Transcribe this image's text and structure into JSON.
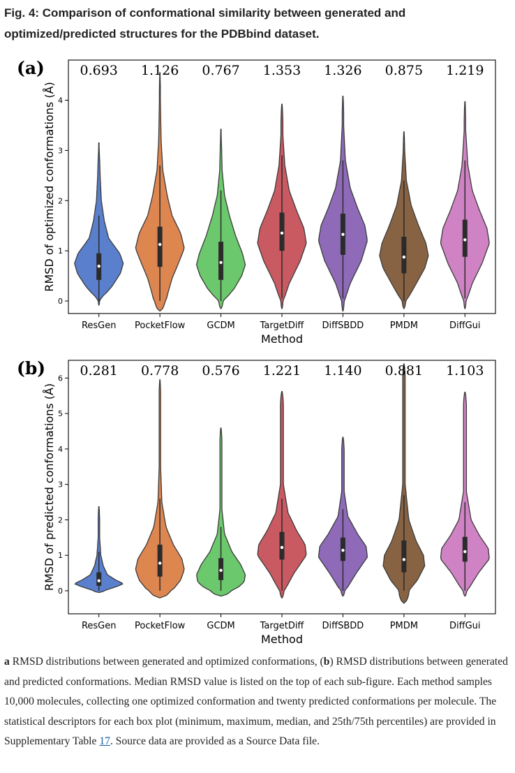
{
  "figure": {
    "title": "Fig. 4: Comparison of conformational similarity between generated and optimized/predicted structures for the PDBbind dataset.",
    "caption": {
      "label_a": "a",
      "text_1": " RMSD distributions between generated and optimized conformations, (",
      "label_b": "b",
      "text_2": ") RMSD distributions between generated and predicted conformations. Median RMSD value is listed on the top of each sub-figure. Each method samples 10,000 molecules, collecting one optimized conformation and twenty predicted conformations per molecule. The statistical descriptors for each box plot (minimum, maximum, median, and 25th/75th percentiles) are provided in Supplementary Table ",
      "table_link": "17",
      "text_3": ". Source data are provided as a Source Data file."
    }
  },
  "chart_data": [
    {
      "type": "violin",
      "panel_label": "(a)",
      "xlabel": "Method",
      "ylabel": "RMSD of optimized conformations (Å)",
      "ylim": [
        -0.25,
        4.8
      ],
      "yticks": [
        0,
        1,
        2,
        3,
        4
      ],
      "grid": false,
      "categories": [
        "ResGen",
        "PocketFlow",
        "GCDM",
        "TargetDiff",
        "DiffSBDD",
        "PMDM",
        "DiffGui"
      ],
      "median_labels": [
        "0.693",
        "1.126",
        "0.767",
        "1.353",
        "1.326",
        "0.875",
        "1.219"
      ],
      "medians": [
        0.693,
        1.126,
        0.767,
        1.353,
        1.326,
        0.875,
        1.219
      ],
      "q1": [
        0.42,
        0.68,
        0.42,
        1.0,
        0.92,
        0.55,
        0.88
      ],
      "q3": [
        0.95,
        1.48,
        1.18,
        1.76,
        1.74,
        1.28,
        1.62
      ],
      "whisker_low": [
        0.0,
        0.0,
        0.0,
        0.05,
        0.05,
        0.0,
        0.05
      ],
      "whisker_high": [
        1.7,
        2.7,
        2.2,
        2.9,
        2.8,
        2.4,
        2.8
      ],
      "min": [
        -0.08,
        -0.2,
        -0.15,
        -0.15,
        -0.2,
        -0.15,
        -0.15
      ],
      "max": [
        3.15,
        4.55,
        3.42,
        3.92,
        4.08,
        3.37,
        3.97
      ],
      "colors": [
        "#5a7fcd",
        "#de8650",
        "#6cc86c",
        "#c95a62",
        "#8e6ab8",
        "#886343",
        "#d083c4"
      ],
      "shape_profiles": [
        [
          [
            0.0,
            0.05
          ],
          [
            0.1,
            0.2
          ],
          [
            0.3,
            0.55
          ],
          [
            0.55,
            0.88
          ],
          [
            0.75,
            1.0
          ],
          [
            0.95,
            0.85
          ],
          [
            1.25,
            0.4
          ],
          [
            1.6,
            0.22
          ],
          [
            2.0,
            0.1
          ],
          [
            2.5,
            0.05
          ],
          [
            3.0,
            0.02
          ]
        ],
        [
          [
            0.0,
            0.25
          ],
          [
            0.2,
            0.35
          ],
          [
            0.45,
            0.5
          ],
          [
            0.8,
            0.8
          ],
          [
            1.05,
            1.0
          ],
          [
            1.35,
            0.85
          ],
          [
            1.7,
            0.5
          ],
          [
            2.1,
            0.3
          ],
          [
            2.6,
            0.12
          ],
          [
            3.2,
            0.05
          ],
          [
            4.0,
            0.02
          ]
        ],
        [
          [
            0.0,
            0.12
          ],
          [
            0.25,
            0.55
          ],
          [
            0.5,
            0.85
          ],
          [
            0.72,
            1.0
          ],
          [
            0.95,
            0.88
          ],
          [
            1.3,
            0.6
          ],
          [
            1.7,
            0.35
          ],
          [
            2.1,
            0.15
          ],
          [
            2.6,
            0.05
          ],
          [
            3.2,
            0.02
          ]
        ],
        [
          [
            0.0,
            0.06
          ],
          [
            0.35,
            0.3
          ],
          [
            0.8,
            0.75
          ],
          [
            1.15,
            1.0
          ],
          [
            1.45,
            0.9
          ],
          [
            1.8,
            0.6
          ],
          [
            2.2,
            0.3
          ],
          [
            2.7,
            0.12
          ],
          [
            3.3,
            0.04
          ]
        ],
        [
          [
            0.0,
            0.06
          ],
          [
            0.35,
            0.3
          ],
          [
            0.8,
            0.75
          ],
          [
            1.2,
            1.0
          ],
          [
            1.5,
            0.9
          ],
          [
            1.85,
            0.6
          ],
          [
            2.25,
            0.3
          ],
          [
            2.8,
            0.1
          ],
          [
            3.5,
            0.03
          ]
        ],
        [
          [
            0.0,
            0.1
          ],
          [
            0.3,
            0.45
          ],
          [
            0.65,
            0.85
          ],
          [
            0.9,
            1.0
          ],
          [
            1.15,
            0.9
          ],
          [
            1.5,
            0.6
          ],
          [
            1.9,
            0.3
          ],
          [
            2.4,
            0.1
          ],
          [
            3.0,
            0.03
          ]
        ],
        [
          [
            0.0,
            0.06
          ],
          [
            0.35,
            0.3
          ],
          [
            0.75,
            0.7
          ],
          [
            1.15,
            1.0
          ],
          [
            1.45,
            0.9
          ],
          [
            1.8,
            0.6
          ],
          [
            2.2,
            0.3
          ],
          [
            2.7,
            0.12
          ],
          [
            3.4,
            0.03
          ]
        ]
      ]
    },
    {
      "type": "violin",
      "panel_label": "(b)",
      "xlabel": "Method",
      "ylabel": "RMSD of predicted conformations (Å)",
      "ylim": [
        -0.65,
        6.5
      ],
      "yticks": [
        0,
        1,
        2,
        3,
        4,
        5,
        6
      ],
      "grid": false,
      "categories": [
        "ResGen",
        "PocketFlow",
        "GCDM",
        "TargetDiff",
        "DiffSBDD",
        "PMDM",
        "DiffGui"
      ],
      "median_labels": [
        "0.281",
        "0.778",
        "0.576",
        "1.221",
        "1.140",
        "0.881",
        "1.103"
      ],
      "medians": [
        0.281,
        0.778,
        0.576,
        1.221,
        1.14,
        0.881,
        1.103
      ],
      "q1": [
        0.14,
        0.4,
        0.3,
        0.88,
        0.84,
        0.52,
        0.82
      ],
      "q3": [
        0.52,
        1.3,
        0.92,
        1.66,
        1.5,
        1.42,
        1.52
      ],
      "whisker_low": [
        0.0,
        0.0,
        0.0,
        0.0,
        0.0,
        0.0,
        0.0
      ],
      "whisker_high": [
        1.1,
        2.6,
        1.8,
        2.6,
        2.3,
        2.7,
        2.5
      ],
      "min": [
        -0.05,
        -0.2,
        -0.15,
        -0.2,
        -0.15,
        -0.35,
        -0.15
      ],
      "max": [
        2.37,
        5.95,
        4.59,
        5.62,
        4.33,
        6.4,
        5.6
      ],
      "colors": [
        "#5a7fcd",
        "#de8650",
        "#6cc86c",
        "#c95a62",
        "#8e6ab8",
        "#886343",
        "#d083c4"
      ],
      "shape_profiles": [
        [
          [
            0.0,
            0.5
          ],
          [
            0.12,
            0.9
          ],
          [
            0.2,
            1.0
          ],
          [
            0.3,
            0.7
          ],
          [
            0.45,
            0.35
          ],
          [
            0.7,
            0.18
          ],
          [
            1.0,
            0.08
          ],
          [
            1.5,
            0.03
          ]
        ],
        [
          [
            0.0,
            0.5
          ],
          [
            0.3,
            0.85
          ],
          [
            0.6,
            1.0
          ],
          [
            0.9,
            0.9
          ],
          [
            1.3,
            0.55
          ],
          [
            1.8,
            0.25
          ],
          [
            2.5,
            0.08
          ],
          [
            3.5,
            0.03
          ]
        ],
        [
          [
            0.0,
            0.55
          ],
          [
            0.25,
            0.95
          ],
          [
            0.45,
            1.0
          ],
          [
            0.75,
            0.8
          ],
          [
            1.1,
            0.45
          ],
          [
            1.6,
            0.15
          ],
          [
            2.3,
            0.04
          ]
        ],
        [
          [
            0.0,
            0.1
          ],
          [
            0.5,
            0.5
          ],
          [
            1.0,
            1.0
          ],
          [
            1.3,
            0.95
          ],
          [
            1.7,
            0.6
          ],
          [
            2.2,
            0.25
          ],
          [
            3.0,
            0.06
          ]
        ],
        [
          [
            0.0,
            0.1
          ],
          [
            0.5,
            0.55
          ],
          [
            0.95,
            1.0
          ],
          [
            1.25,
            0.95
          ],
          [
            1.6,
            0.6
          ],
          [
            2.1,
            0.2
          ],
          [
            2.8,
            0.05
          ]
        ],
        [
          [
            0.0,
            0.2
          ],
          [
            0.3,
            0.55
          ],
          [
            0.7,
            0.85
          ],
          [
            1.0,
            0.8
          ],
          [
            1.4,
            0.5
          ],
          [
            2.0,
            0.2
          ],
          [
            3.0,
            0.05
          ]
        ],
        [
          [
            0.0,
            0.1
          ],
          [
            0.5,
            0.55
          ],
          [
            0.9,
            1.0
          ],
          [
            1.2,
            0.95
          ],
          [
            1.55,
            0.6
          ],
          [
            2.0,
            0.25
          ],
          [
            2.8,
            0.06
          ]
        ]
      ]
    }
  ]
}
